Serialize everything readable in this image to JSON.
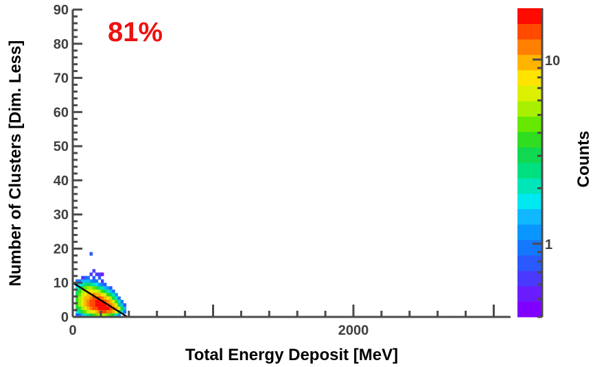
{
  "chart_data": {
    "type": "heatmap",
    "xlabel": "Total Energy Deposit [MeV]",
    "ylabel": "Number of Clusters [Dim. Less]",
    "xlim": [
      0,
      3120
    ],
    "ylim": [
      0,
      90
    ],
    "x_ticks_labeled": [
      0,
      2000
    ],
    "y_ticks_labeled": [
      0,
      10,
      20,
      30,
      40,
      50,
      60,
      70,
      80,
      90
    ],
    "annotation": {
      "text": "81%",
      "color": "#ee1111"
    },
    "colorbar": {
      "label": "Counts",
      "scale": "log",
      "range": [
        0.4,
        19
      ],
      "tick_labels": [
        "1",
        "10"
      ],
      "tick_values": [
        1,
        10
      ]
    },
    "cut_line": {
      "x": [
        0,
        390
      ],
      "y": [
        10,
        0
      ],
      "color": "#000000"
    },
    "bin_width_mev": 20,
    "bin_height_clusters": 1,
    "bins": [
      [
        20,
        10,
        0.9
      ],
      [
        40,
        10,
        1
      ],
      [
        60,
        10,
        1.3
      ],
      [
        80,
        10,
        1.5
      ],
      [
        100,
        10,
        1.4
      ],
      [
        120,
        10,
        1.2
      ],
      [
        140,
        10,
        1
      ],
      [
        160,
        10,
        0.9
      ],
      [
        180,
        11,
        0.8
      ],
      [
        200,
        10,
        0.7
      ],
      [
        60,
        11,
        0.7
      ],
      [
        80,
        11,
        0.8
      ],
      [
        100,
        11,
        0.9
      ],
      [
        120,
        12,
        0.7
      ],
      [
        140,
        11,
        0.8
      ],
      [
        160,
        12,
        0.6
      ],
      [
        180,
        12,
        0.6
      ],
      [
        140,
        13,
        0.6
      ],
      [
        200,
        12,
        0.5
      ],
      [
        120,
        18,
        0.8
      ],
      [
        20,
        9,
        1.2
      ],
      [
        40,
        9,
        1.6
      ],
      [
        60,
        9,
        2.2
      ],
      [
        80,
        9,
        2.5
      ],
      [
        100,
        9,
        2.8
      ],
      [
        120,
        9,
        2.3
      ],
      [
        140,
        9,
        2
      ],
      [
        160,
        9,
        1.6
      ],
      [
        180,
        9,
        1.2
      ],
      [
        200,
        9,
        1
      ],
      [
        220,
        9,
        0.8
      ],
      [
        20,
        8,
        1.8
      ],
      [
        40,
        8,
        2.5
      ],
      [
        60,
        8,
        3.5
      ],
      [
        80,
        8,
        4.5
      ],
      [
        100,
        8,
        5
      ],
      [
        120,
        8,
        5.5
      ],
      [
        140,
        8,
        4.5
      ],
      [
        160,
        8,
        3.5
      ],
      [
        180,
        8,
        2.6
      ],
      [
        200,
        8,
        2
      ],
      [
        220,
        8,
        1.5
      ],
      [
        240,
        8,
        1.1
      ],
      [
        260,
        8,
        0.8
      ],
      [
        20,
        7,
        2.5
      ],
      [
        40,
        7,
        3.5
      ],
      [
        60,
        7,
        5
      ],
      [
        80,
        7,
        6
      ],
      [
        100,
        7,
        7
      ],
      [
        120,
        7,
        8
      ],
      [
        140,
        7,
        7
      ],
      [
        160,
        7,
        6
      ],
      [
        180,
        7,
        5
      ],
      [
        200,
        7,
        4
      ],
      [
        220,
        7,
        3
      ],
      [
        240,
        7,
        2
      ],
      [
        260,
        7,
        1.5
      ],
      [
        280,
        7,
        1
      ],
      [
        20,
        6,
        3
      ],
      [
        40,
        6,
        4.5
      ],
      [
        60,
        6,
        6
      ],
      [
        80,
        6,
        7
      ],
      [
        100,
        6,
        9
      ],
      [
        120,
        6,
        10
      ],
      [
        140,
        6,
        11
      ],
      [
        160,
        6,
        10
      ],
      [
        180,
        6,
        9
      ],
      [
        200,
        6,
        8
      ],
      [
        220,
        6,
        6
      ],
      [
        240,
        6,
        4
      ],
      [
        260,
        6,
        3
      ],
      [
        280,
        6,
        2
      ],
      [
        300,
        6,
        1.2
      ],
      [
        20,
        5,
        3.5
      ],
      [
        40,
        5,
        5
      ],
      [
        60,
        5,
        7
      ],
      [
        80,
        5,
        9
      ],
      [
        100,
        5,
        10
      ],
      [
        120,
        5,
        11
      ],
      [
        140,
        5,
        13
      ],
      [
        160,
        5,
        14
      ],
      [
        180,
        5,
        13
      ],
      [
        200,
        5,
        12
      ],
      [
        220,
        5,
        10
      ],
      [
        240,
        5,
        8
      ],
      [
        260,
        5,
        5
      ],
      [
        280,
        5,
        3
      ],
      [
        300,
        5,
        2
      ],
      [
        320,
        5,
        1
      ],
      [
        20,
        4,
        4
      ],
      [
        40,
        4,
        5.5
      ],
      [
        60,
        4,
        7
      ],
      [
        80,
        4,
        9
      ],
      [
        100,
        4,
        11
      ],
      [
        120,
        4,
        13
      ],
      [
        140,
        4,
        15
      ],
      [
        160,
        4,
        16
      ],
      [
        180,
        4,
        17
      ],
      [
        200,
        4,
        16
      ],
      [
        220,
        4,
        14
      ],
      [
        240,
        4,
        12
      ],
      [
        260,
        4,
        9
      ],
      [
        280,
        4,
        6
      ],
      [
        300,
        4,
        3.5
      ],
      [
        320,
        4,
        2
      ],
      [
        340,
        4,
        1
      ],
      [
        20,
        3,
        4
      ],
      [
        40,
        3,
        5
      ],
      [
        60,
        3,
        7
      ],
      [
        80,
        3,
        9
      ],
      [
        100,
        3,
        11
      ],
      [
        120,
        3,
        13
      ],
      [
        140,
        3,
        15
      ],
      [
        160,
        3,
        17
      ],
      [
        180,
        3,
        18
      ],
      [
        200,
        3,
        18
      ],
      [
        220,
        3,
        17
      ],
      [
        240,
        3,
        15
      ],
      [
        260,
        3,
        12
      ],
      [
        280,
        3,
        9
      ],
      [
        300,
        3,
        6
      ],
      [
        320,
        3,
        3
      ],
      [
        340,
        3,
        1.5
      ],
      [
        360,
        3,
        0.8
      ],
      [
        20,
        2,
        3
      ],
      [
        40,
        2,
        4
      ],
      [
        60,
        2,
        5.5
      ],
      [
        80,
        2,
        7
      ],
      [
        100,
        2,
        9
      ],
      [
        120,
        2,
        11
      ],
      [
        140,
        2,
        13
      ],
      [
        160,
        2,
        15
      ],
      [
        180,
        2,
        17
      ],
      [
        200,
        2,
        18
      ],
      [
        220,
        2,
        18
      ],
      [
        240,
        2,
        17
      ],
      [
        260,
        2,
        15
      ],
      [
        280,
        2,
        12
      ],
      [
        300,
        2,
        9
      ],
      [
        320,
        2,
        6
      ],
      [
        340,
        2,
        3
      ],
      [
        360,
        2,
        1.5
      ],
      [
        20,
        1,
        1.8
      ],
      [
        40,
        1,
        2.5
      ],
      [
        60,
        1,
        3.5
      ],
      [
        80,
        1,
        4.5
      ],
      [
        100,
        1,
        6
      ],
      [
        120,
        1,
        7
      ],
      [
        140,
        1,
        8
      ],
      [
        160,
        1,
        10
      ],
      [
        180,
        1,
        12
      ],
      [
        200,
        1,
        13
      ],
      [
        220,
        1,
        13
      ],
      [
        240,
        1,
        12
      ],
      [
        260,
        1,
        11
      ],
      [
        280,
        1,
        9
      ],
      [
        300,
        1,
        7
      ],
      [
        320,
        1,
        4
      ],
      [
        340,
        1,
        2
      ],
      [
        360,
        1,
        1
      ],
      [
        20,
        0,
        0.8
      ],
      [
        40,
        0,
        1
      ],
      [
        60,
        0,
        1.5
      ],
      [
        80,
        0,
        2
      ],
      [
        100,
        0,
        2.5
      ],
      [
        120,
        0,
        3
      ],
      [
        140,
        0,
        3.5
      ],
      [
        160,
        0,
        4.5
      ],
      [
        180,
        0,
        5
      ],
      [
        200,
        0,
        5.5
      ],
      [
        220,
        0,
        5
      ],
      [
        240,
        0,
        4.5
      ],
      [
        260,
        0,
        4
      ],
      [
        280,
        0,
        3
      ],
      [
        300,
        0,
        2
      ],
      [
        320,
        0,
        1.2
      ]
    ],
    "grid": false,
    "legend": "colorbar-right"
  }
}
